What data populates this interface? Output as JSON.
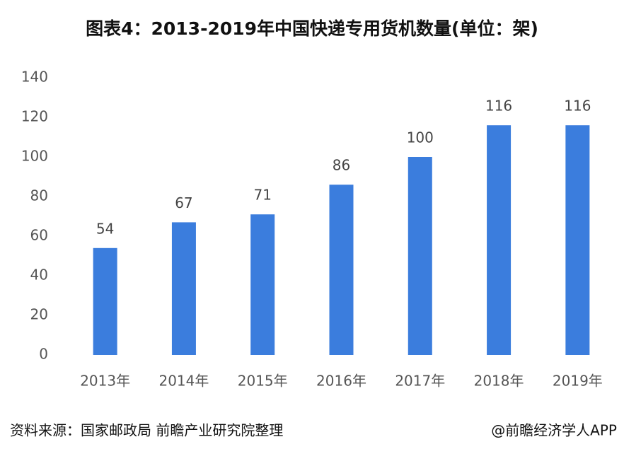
{
  "chart_data": {
    "type": "bar",
    "title": "图表4：2013-2019年中国快递专用货机数量(单位：架)",
    "categories": [
      "2013年",
      "2014年",
      "2015年",
      "2016年",
      "2017年",
      "2018年",
      "2019年"
    ],
    "values": [
      54,
      67,
      71,
      86,
      100,
      116,
      116
    ],
    "color": "#3b7ddd",
    "ylim": [
      0,
      140
    ],
    "yticks": [
      0,
      20,
      40,
      60,
      80,
      100,
      120,
      140
    ],
    "grid": false,
    "source": "资料来源：国家邮政局 前瞻产业研究院整理",
    "credit": "@前瞻经济学人APP"
  }
}
